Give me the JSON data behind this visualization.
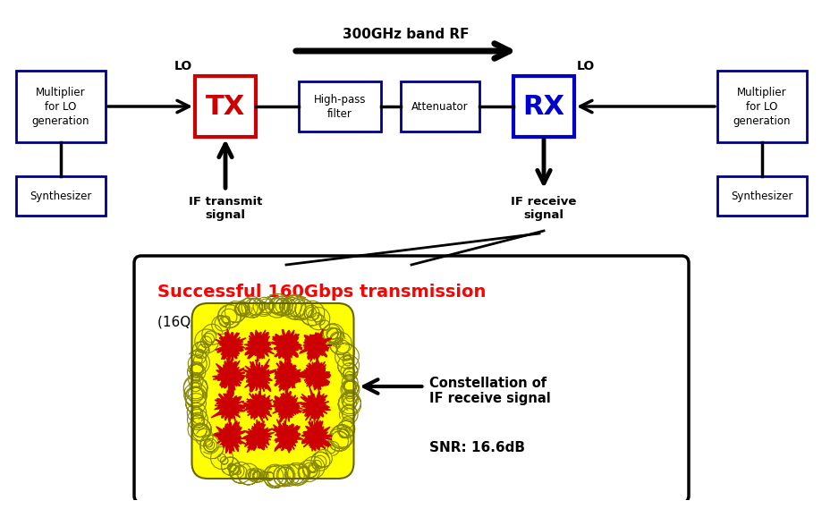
{
  "bg_color": "#ffffff",
  "box_color": "#000080",
  "tx_color": "#cc0000",
  "rx_color": "#0000cc",
  "success_color": "#ff0000",
  "rf_label": "300GHz band RF",
  "tx_label": "TX",
  "rx_label": "RX",
  "hpf_label": "High-pass\nfilter",
  "att_label": "Attenuator",
  "mult_left_label": "Multiplier\nfor LO\ngeneration",
  "mult_right_label": "Multiplier\nfor LO\ngeneration",
  "synth_left_label": "Synthesizer",
  "synth_right_label": "Synthesizer",
  "lo_left": "LO",
  "lo_right": "LO",
  "if_tx_label": "IF transmit\nsignal",
  "if_rx_label": "IF receive\nsignal",
  "success_line1": "Successful 160Gbps transmission",
  "success_line2": "(16QAM, 40Gbaud)",
  "constellation_label": "Constellation of\nIF receive signal",
  "snr_label": "SNR: 16.6dB"
}
